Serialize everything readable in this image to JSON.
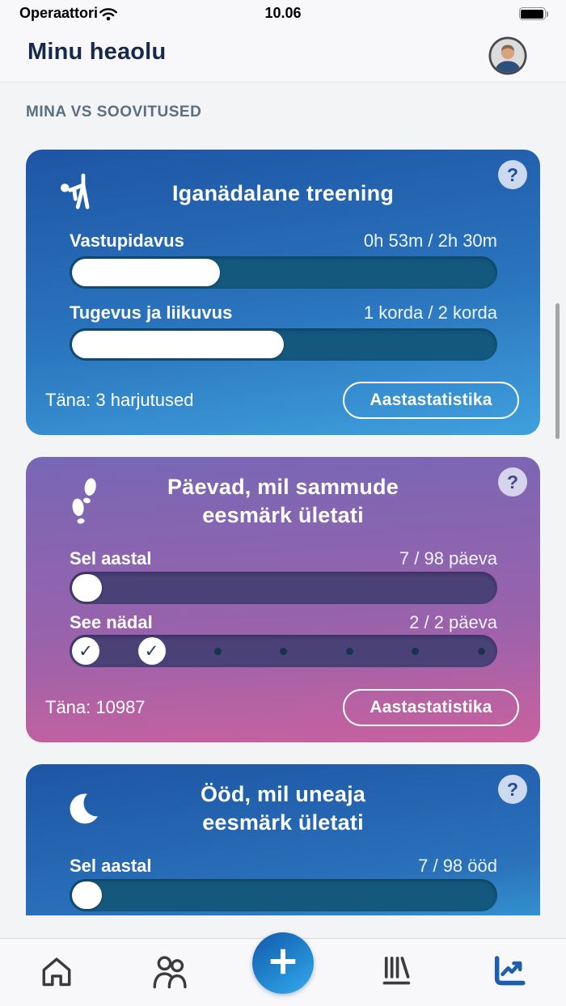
{
  "status_bar": {
    "carrier": "Operaattori",
    "time": "10.06"
  },
  "header": {
    "title": "Minu heaolu"
  },
  "section_title": "MINA VS SOOVITUSED",
  "cards": [
    {
      "icon": "exercise-person",
      "help": "?",
      "title": "Iganädalane treening",
      "rows": [
        {
          "label": "Vastupidavus",
          "value": "0h 53m / 2h 30m",
          "progress_pct": 35
        },
        {
          "label": "Tugevus ja liikuvus",
          "value": "1 korda / 2 korda",
          "progress_pct": 50
        }
      ],
      "today": "Täna: 3 harjutused",
      "button": "Aastastatistika"
    },
    {
      "icon": "footsteps",
      "help": "?",
      "title_line1": "Päevad, mil sammude",
      "title_line2": "eesmärk ületati",
      "year_row": {
        "label": "Sel aastal",
        "value": "7 / 98 päeva",
        "progress_pct": 7
      },
      "week_row": {
        "label": "See nädal",
        "value": "2 / 2 päeva",
        "check_glyph": "✓",
        "days_checked": [
          true,
          true,
          false,
          false,
          false,
          false,
          false
        ]
      },
      "today": "Täna: 10987",
      "button": "Aastastatistika"
    },
    {
      "icon": "moon",
      "help": "?",
      "title_line1": "Ööd, mil uneaja",
      "title_line2": "eesmärk ületati",
      "year_row": {
        "label": "Sel aastal",
        "value": "7 / 98 ööd",
        "progress_pct": 7
      }
    }
  ],
  "tab_bar": {
    "items": [
      {
        "name": "home",
        "active": false
      },
      {
        "name": "community",
        "active": false
      },
      {
        "name": "add",
        "active": false
      },
      {
        "name": "library",
        "active": false
      },
      {
        "name": "statistics",
        "active": true
      }
    ]
  },
  "colors": {
    "card_blue_top": "#1e55a4",
    "card_blue_bottom": "#3fa0dd",
    "card_purple_top": "#7767b6",
    "card_purple_bottom": "#c9619e",
    "track_blue": "#14587e",
    "track_purple": "#4a4277",
    "week_dot_navy": "#16344e",
    "accent_blue": "#1d5fad",
    "page_bg": "#f3f4f6",
    "title_navy": "#14294b",
    "section_gray": "#5b6e82"
  }
}
